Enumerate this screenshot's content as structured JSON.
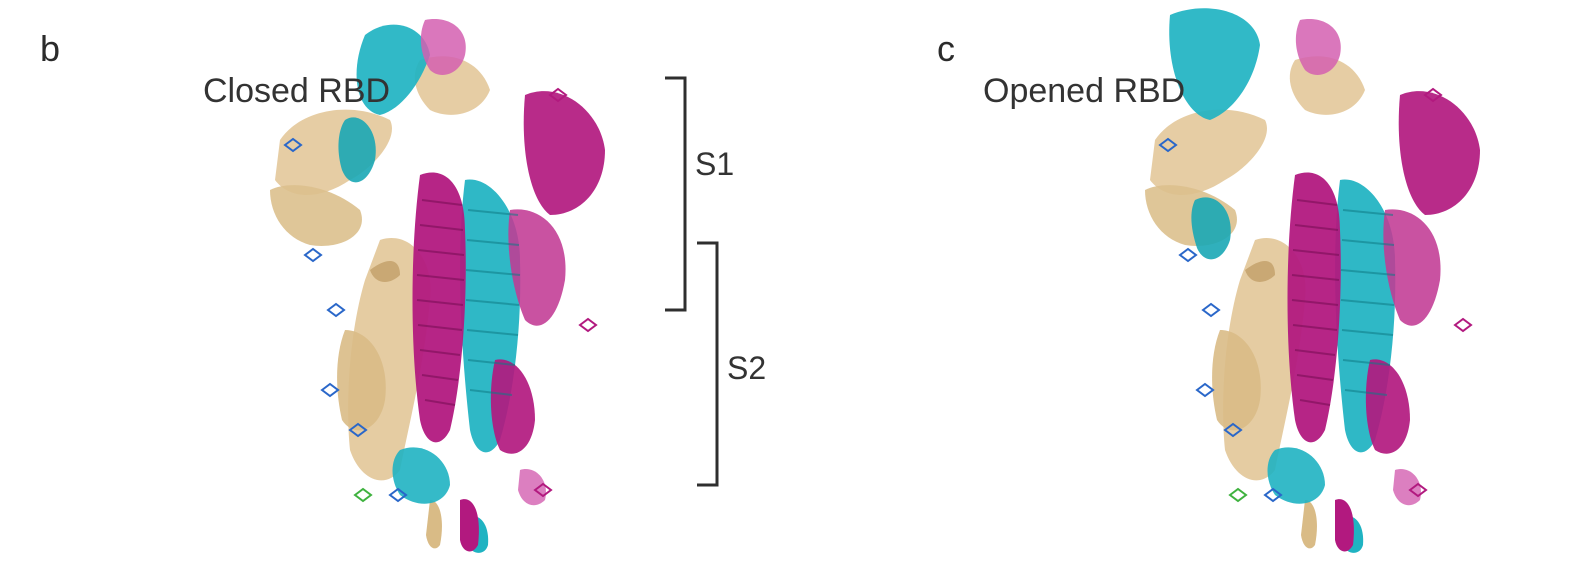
{
  "panels": [
    {
      "letter": "b",
      "state_label": "Closed RBD"
    },
    {
      "letter": "c",
      "state_label": "Opened RBD"
    }
  ],
  "regions": {
    "s1_label": "S1",
    "s2_label": "S2"
  },
  "colors": {
    "chain_a": "#e3c89a",
    "chain_b": "#1fb3c2",
    "chain_c": "#b2197f",
    "chain_c_light": "#d35fb0",
    "glycan_blue": "#2a67c9",
    "glycan_green": "#3fb23f",
    "bracket": "#2f2f2f"
  }
}
